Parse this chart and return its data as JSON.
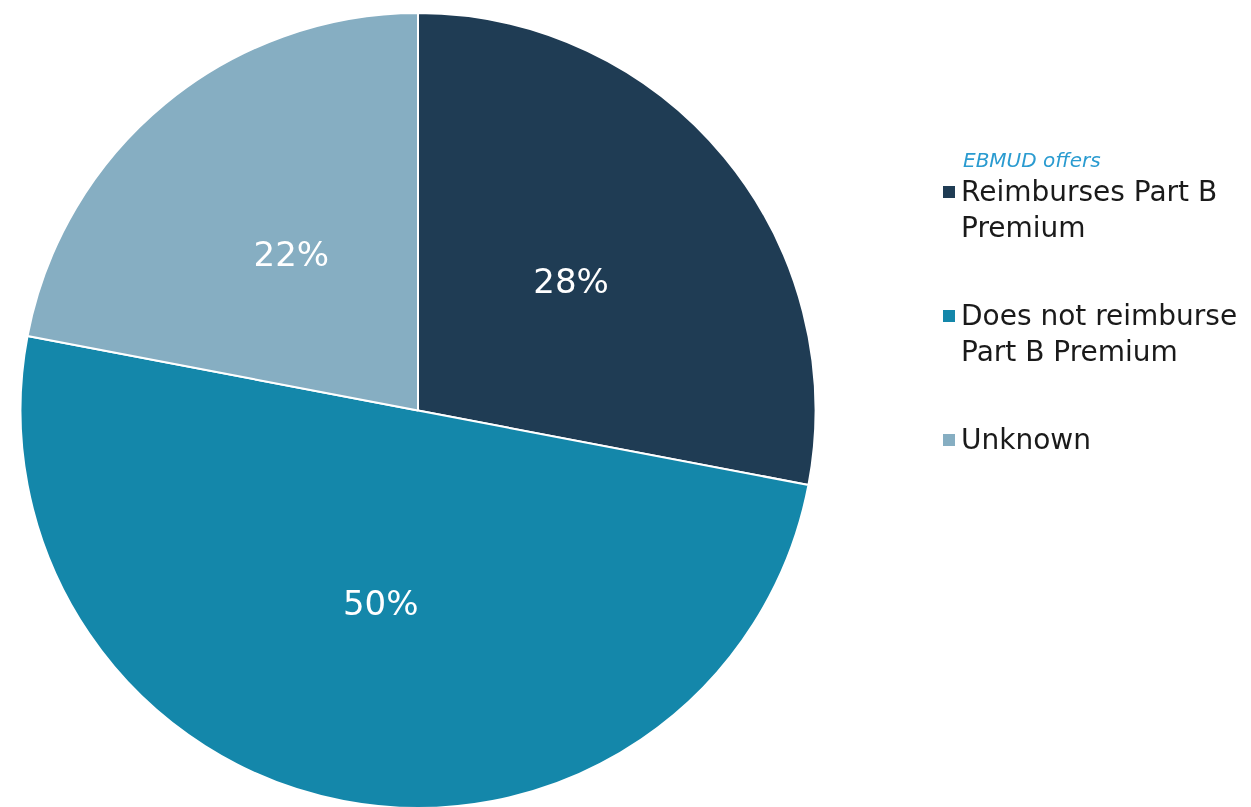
{
  "chart_data": {
    "type": "pie",
    "legend_title": "EBMUD offers",
    "categories": [
      "Reimburses Part B Premium",
      "Does not reimburse Part B Premium",
      "Unknown"
    ],
    "values": [
      28,
      50,
      22
    ],
    "colors": [
      "#1f3c54",
      "#1487aa",
      "#86aec2"
    ],
    "value_labels": [
      "28%",
      "50%",
      "22%"
    ],
    "legend": "right"
  }
}
